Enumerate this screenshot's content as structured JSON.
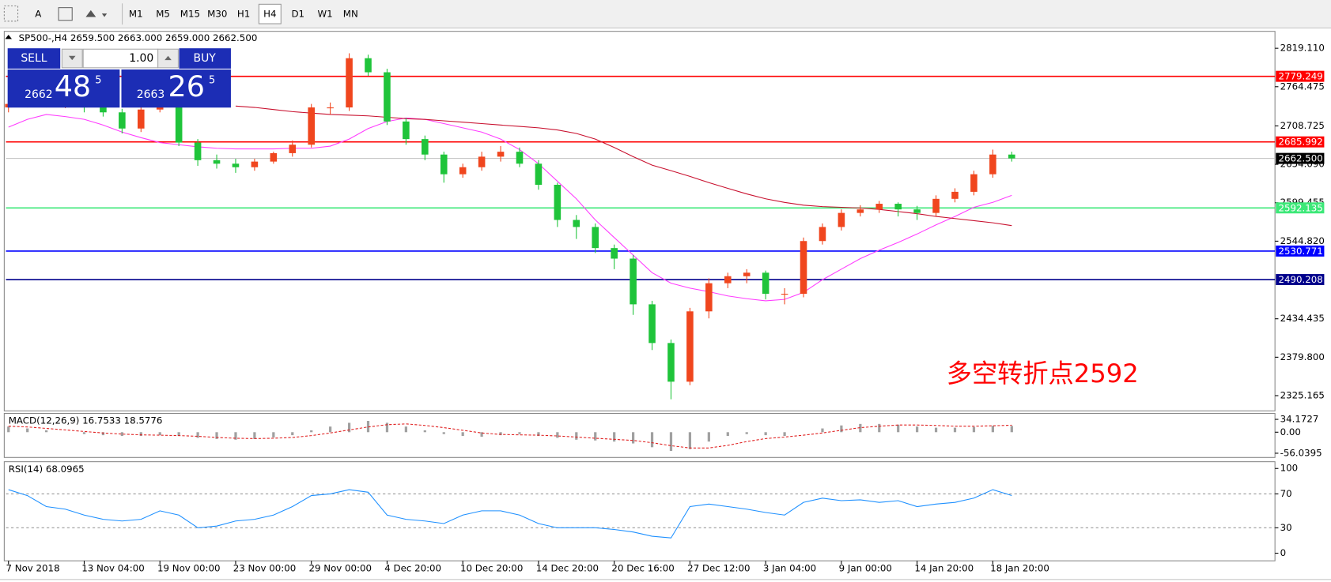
{
  "toolbar": {
    "font_button": "A",
    "periods": [
      "M1",
      "M5",
      "M15",
      "M30",
      "H1",
      "H4",
      "D1",
      "W1",
      "MN"
    ],
    "active_period": 5
  },
  "trade_panel": {
    "sell": "SELL",
    "buy": "BUY",
    "volume": "1.00",
    "sell_big": "2662",
    "sell_pips": "48",
    "sell_point": "5",
    "buy_big": "2663",
    "buy_pips": "26",
    "buy_point": "5"
  },
  "chart_data": [
    {
      "type": "candlestick",
      "title": "SP500-,H4  2659.500 2663.000 2659.000 2662.500",
      "categories": [
        "7 Nov 2018",
        null,
        null,
        null,
        "13 Nov 04:00",
        null,
        null,
        null,
        "19 Nov 00:00",
        null,
        null,
        null,
        "23 Nov 00:00",
        null,
        null,
        null,
        "29 Nov 00:00",
        null,
        null,
        null,
        "4 Dec 20:00",
        null,
        null,
        null,
        "10 Dec 20:00",
        null,
        null,
        null,
        "14 Dec 20:00",
        null,
        null,
        null,
        "20 Dec 16:00",
        null,
        null,
        null,
        "27 Dec 12:00",
        null,
        null,
        null,
        "3 Jan 04:00",
        null,
        null,
        null,
        "9 Jan 00:00",
        null,
        null,
        null,
        "14 Jan 20:00",
        null,
        null,
        null,
        "18 Jan 20:00",
        null
      ],
      "open": [
        2735,
        2740,
        2745,
        2738,
        2742,
        2735,
        2728,
        2705,
        2732,
        2740,
        2685,
        2660,
        2655,
        2650,
        2658,
        2670,
        2682,
        2735,
        2735,
        2805,
        2785,
        2715,
        2690,
        2668,
        2640,
        2650,
        2665,
        2672,
        2655,
        2625,
        2575,
        2565,
        2535,
        2520,
        2455,
        2400,
        2345,
        2445,
        2485,
        2495,
        2500,
        2470,
        2470,
        2545,
        2565,
        2585,
        2590,
        2598,
        2590,
        2585,
        2605,
        2615,
        2640,
        2668
      ],
      "high": [
        2748,
        2752,
        2750,
        2748,
        2746,
        2740,
        2733,
        2738,
        2748,
        2742,
        2690,
        2668,
        2662,
        2662,
        2672,
        2688,
        2740,
        2742,
        2812,
        2810,
        2790,
        2720,
        2695,
        2672,
        2655,
        2672,
        2680,
        2678,
        2660,
        2628,
        2582,
        2570,
        2540,
        2525,
        2460,
        2405,
        2450,
        2492,
        2500,
        2505,
        2503,
        2478,
        2550,
        2570,
        2590,
        2596,
        2602,
        2600,
        2595,
        2610,
        2620,
        2645,
        2675,
        2672
      ],
      "low": [
        2728,
        2735,
        2735,
        2734,
        2728,
        2722,
        2698,
        2700,
        2728,
        2680,
        2652,
        2648,
        2642,
        2645,
        2655,
        2665,
        2678,
        2725,
        2730,
        2780,
        2710,
        2682,
        2660,
        2628,
        2635,
        2645,
        2658,
        2650,
        2618,
        2565,
        2548,
        2528,
        2505,
        2440,
        2390,
        2320,
        2340,
        2435,
        2478,
        2485,
        2462,
        2455,
        2465,
        2540,
        2560,
        2580,
        2585,
        2580,
        2575,
        2580,
        2600,
        2610,
        2635,
        2658
      ],
      "close": [
        2740,
        2745,
        2738,
        2742,
        2735,
        2728,
        2705,
        2732,
        2740,
        2685,
        2660,
        2655,
        2650,
        2658,
        2670,
        2682,
        2735,
        2735,
        2805,
        2785,
        2715,
        2690,
        2668,
        2640,
        2650,
        2665,
        2672,
        2655,
        2625,
        2575,
        2565,
        2535,
        2520,
        2455,
        2400,
        2345,
        2445,
        2485,
        2495,
        2500,
        2470,
        2470,
        2545,
        2565,
        2585,
        2590,
        2598,
        2590,
        2585,
        2605,
        2615,
        2640,
        2668,
        2662.5
      ],
      "up_color": "#f0461e",
      "down_color": "#1fc43a",
      "series": [
        {
          "color": "#ff3cff",
          "values": [
            2707,
            2718,
            2725,
            2722,
            2718,
            2710,
            2700,
            2692,
            2685,
            2682,
            2679,
            2677,
            2676,
            2676,
            2676,
            2677,
            2677,
            2680,
            2690,
            2705,
            2715,
            2720,
            2718,
            2712,
            2706,
            2700,
            2690,
            2675,
            2655,
            2630,
            2605,
            2575,
            2550,
            2525,
            2500,
            2485,
            2478,
            2473,
            2467,
            2463,
            2460,
            2462,
            2472,
            2490,
            2505,
            2520,
            2532,
            2543,
            2555,
            2568,
            2580,
            2593,
            2600,
            2610
          ]
        },
        {
          "color": "#c8102e",
          "values": [
            null,
            null,
            null,
            null,
            null,
            null,
            null,
            null,
            null,
            null,
            null,
            null,
            2737,
            2735,
            2732,
            2729,
            2727,
            2725,
            2724,
            2723,
            2721,
            2719,
            2718,
            2716,
            2714,
            2712,
            2710,
            2708,
            2706,
            2703,
            2698,
            2690,
            2678,
            2665,
            2653,
            2645,
            2637,
            2628,
            2620,
            2612,
            2605,
            2600,
            2596,
            2594,
            2593,
            2592,
            2590,
            2587,
            2584,
            2580,
            2577,
            2574,
            2571,
            2567
          ]
        }
      ],
      "levels": [
        {
          "value": 2779.249,
          "color": "#ff0000"
        },
        {
          "value": 2685.992,
          "color": "#ff0000"
        },
        {
          "value": 2662.5,
          "label": "2662.500",
          "color": "#c0c0c0",
          "label_bg": "#000000"
        },
        {
          "value": 2592.135,
          "color": "#3ce878"
        },
        {
          "value": 2530.771,
          "color": "#0000ff"
        },
        {
          "value": 2490.208,
          "color": "#00008b"
        }
      ],
      "annotation": "多空转折点2592",
      "ylim": [
        2303.5,
        2843.2
      ],
      "yticks": [
        {
          "value": 2819.11,
          "label": "2819.110"
        },
        {
          "value": 2764.475,
          "label": "2764.475"
        },
        {
          "value": 2708.725,
          "label": "2708.725"
        },
        {
          "value": 2654.09,
          "label": "2654.090"
        },
        {
          "value": 2599.455,
          "label": "2599.455"
        },
        {
          "value": 2544.82,
          "label": "2544.820"
        },
        {
          "value": 2434.435,
          "label": "2434.435"
        },
        {
          "value": 2379.8,
          "label": "2379.800"
        },
        {
          "value": 2325.165,
          "label": "2325.165"
        }
      ]
    },
    {
      "type": "macd",
      "title": "MACD(12,26,9) 16.7533 18.5776",
      "color": "#a0a0a0",
      "signal_color": "#e02020",
      "values": [
        15,
        10,
        5,
        0,
        -5,
        -8,
        -10,
        -10,
        -8,
        -10,
        -15,
        -18,
        -20,
        -18,
        -14,
        -8,
        5,
        15,
        25,
        30,
        25,
        15,
        5,
        -5,
        -10,
        -12,
        -8,
        -5,
        -10,
        -15,
        -20,
        -22,
        -25,
        -30,
        -40,
        -50,
        -45,
        -25,
        -10,
        -5,
        -8,
        -10,
        0,
        10,
        18,
        22,
        22,
        20,
        15,
        12,
        12,
        14,
        17,
        16.7533
      ],
      "signal": [
        16,
        14,
        10,
        6,
        2,
        -2,
        -5,
        -7,
        -8,
        -9,
        -11,
        -14,
        -16,
        -17,
        -16,
        -14,
        -9,
        -2,
        6,
        14,
        20,
        22,
        18,
        12,
        5,
        -2,
        -6,
        -7,
        -8,
        -10,
        -13,
        -16,
        -19,
        -22,
        -28,
        -36,
        -42,
        -42,
        -35,
        -25,
        -17,
        -13,
        -8,
        -2,
        5,
        12,
        16,
        19,
        19,
        18,
        16,
        16,
        17,
        18.5776
      ],
      "ylim": [
        -67.3,
        50
      ],
      "yticks": [
        34.1727,
        {
          "value": 0,
          "label": "0.00"
        },
        -56.0395
      ]
    },
    {
      "type": "line",
      "title": "RSI(14) 68.0965",
      "color": "#1e90ff",
      "values": [
        75,
        68,
        55,
        52,
        45,
        40,
        38,
        40,
        50,
        45,
        30,
        32,
        38,
        40,
        45,
        55,
        68,
        70,
        75,
        72,
        45,
        40,
        38,
        35,
        45,
        50,
        50,
        45,
        35,
        30,
        30,
        30,
        28,
        25,
        20,
        18,
        55,
        58,
        55,
        52,
        48,
        45,
        60,
        65,
        62,
        63,
        60,
        62,
        55,
        58,
        60,
        65,
        75,
        68.0965
      ],
      "ylim": [
        -9,
        108
      ],
      "yticks": [
        100,
        70,
        30,
        0
      ],
      "dashed_levels": [
        70,
        30
      ]
    }
  ]
}
